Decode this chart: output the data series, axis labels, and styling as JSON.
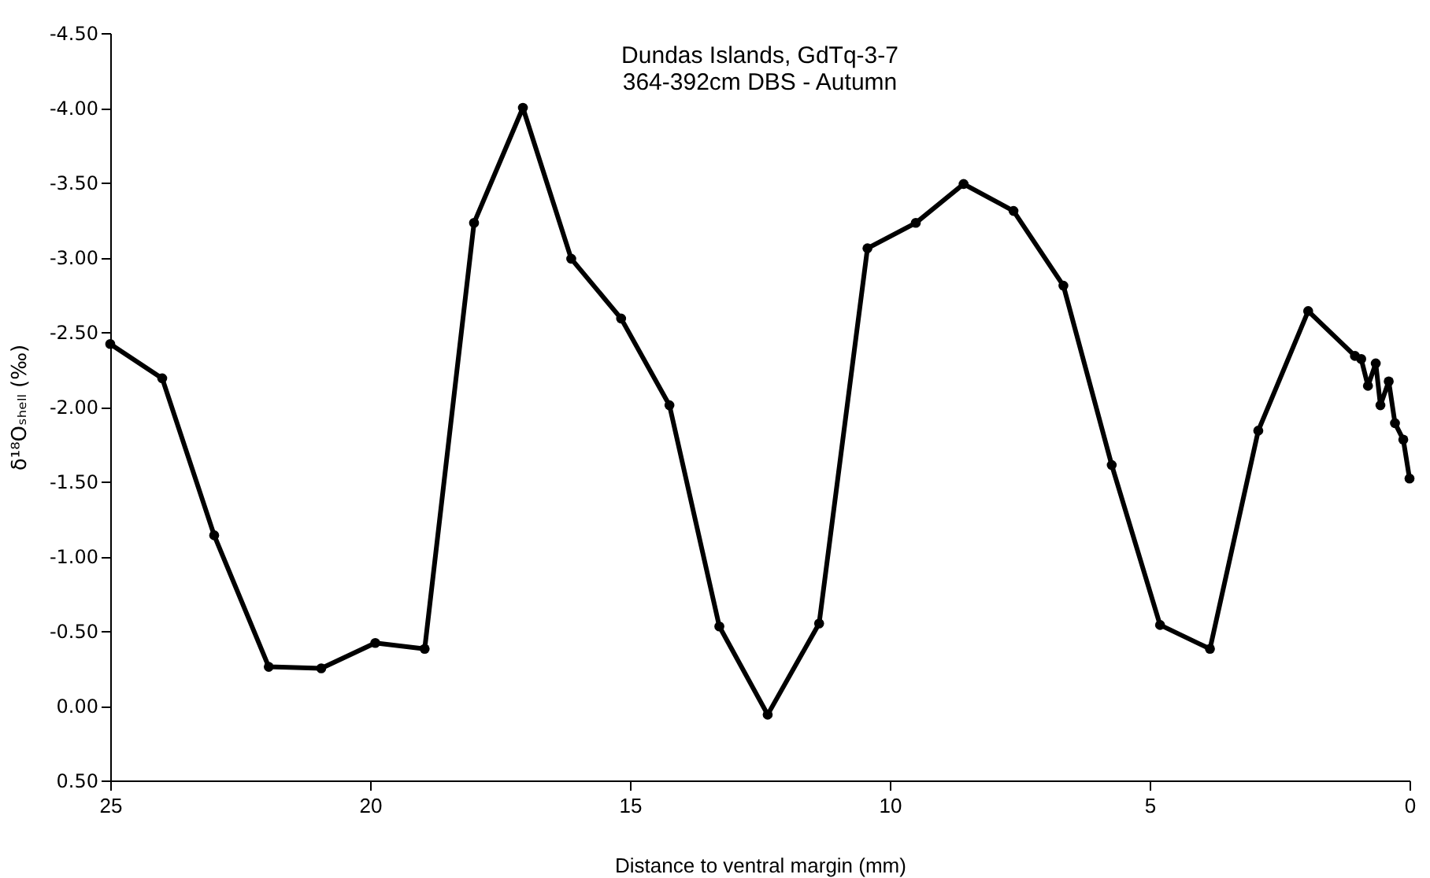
{
  "chart_data": {
    "type": "line",
    "title": [
      "Dundas Islands, GdTq-3-7",
      "364-392cm DBS - Autumn"
    ],
    "xlabel": "Distance to ventral margin (mm)",
    "ylabel": "δ¹⁸Oₛₕₑₗₗ (‰)",
    "x": [
      25.0,
      24.0,
      23.0,
      21.95,
      20.94,
      19.9,
      18.95,
      18.0,
      17.06,
      16.13,
      15.17,
      14.24,
      13.28,
      12.35,
      11.36,
      10.43,
      9.5,
      8.58,
      7.62,
      6.66,
      5.73,
      4.8,
      3.84,
      2.91,
      1.95,
      1.05,
      0.93,
      0.8,
      0.65,
      0.56,
      0.4,
      0.28,
      0.12,
      0.0
    ],
    "series": [
      {
        "color": "#000000",
        "values": [
          -2.42,
          -2.19,
          -1.14,
          -0.26,
          -0.25,
          -0.42,
          -0.38,
          -3.23,
          -4.0,
          -2.99,
          -2.59,
          -2.01,
          -0.53,
          0.06,
          -0.55,
          -3.06,
          -3.23,
          -3.49,
          -3.31,
          -2.81,
          -1.61,
          -0.54,
          -0.38,
          -1.84,
          -2.64,
          -2.34,
          -2.32,
          -2.14,
          -2.29,
          -2.01,
          -2.17,
          -1.89,
          -1.78,
          -1.52
        ]
      }
    ],
    "xlim": [
      25,
      0
    ],
    "xticks": [
      25,
      20,
      15,
      10,
      5,
      0
    ],
    "ylim": [
      0.5,
      -4.5
    ],
    "yticks": [
      {
        "value": 0.5,
        "label": "0.50"
      },
      {
        "value": 0.0,
        "label": "0.00"
      },
      {
        "value": -0.5,
        "label": "-0.50"
      },
      {
        "value": -1.0,
        "label": "-1.00"
      },
      {
        "value": -1.5,
        "label": "-1.50"
      },
      {
        "value": -2.0,
        "label": "-2.00"
      },
      {
        "value": -2.5,
        "label": "-2.50"
      },
      {
        "value": -3.0,
        "label": "-3.00"
      },
      {
        "value": -3.5,
        "label": "-3.50"
      },
      {
        "value": -4.0,
        "label": "-4.00"
      },
      {
        "value": -4.5,
        "label": "-4.50"
      }
    ],
    "grid": false,
    "marker": "circle",
    "line_style": "solid"
  }
}
